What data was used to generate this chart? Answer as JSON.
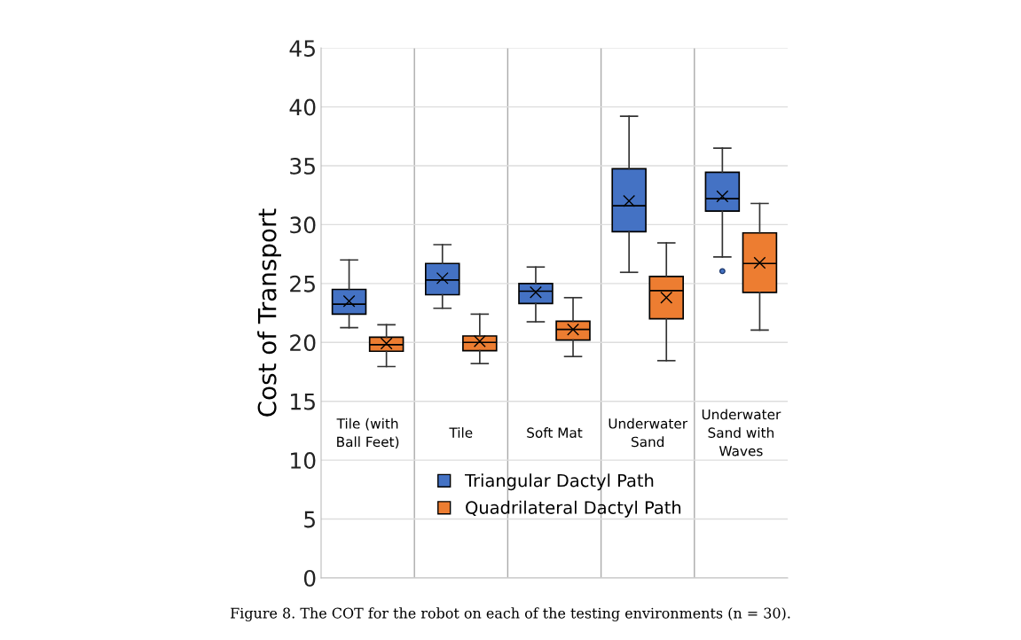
{
  "chart_data": {
    "type": "box",
    "categories": [
      "Tile (with\nBall Feet)",
      "Tile",
      "Soft Mat",
      "Underwater\nSand",
      "Underwater\nSand with\nWaves"
    ],
    "ylabel": "Cost of Transport",
    "ylim": [
      0,
      45
    ],
    "yticks": [
      0,
      5,
      10,
      15,
      20,
      25,
      30,
      35,
      40,
      45
    ],
    "grid": "y",
    "legend": "bottom",
    "marker": "cross",
    "series": [
      {
        "name": "Triangular Dactyl Path",
        "color": "#4472c4",
        "boxes": [
          {
            "low": 21.25,
            "q1": 22.4,
            "median": 23.25,
            "q3": 24.5,
            "high": 27.0,
            "mean": 23.5
          },
          {
            "low": 22.9,
            "q1": 24.05,
            "median": 25.3,
            "q3": 26.7,
            "high": 28.3,
            "mean": 25.45
          },
          {
            "low": 21.75,
            "q1": 23.3,
            "median": 24.35,
            "q3": 25.0,
            "high": 26.4,
            "mean": 24.25
          },
          {
            "low": 25.95,
            "q1": 29.4,
            "median": 31.6,
            "q3": 34.75,
            "high": 39.2,
            "mean": 32.0
          },
          {
            "low": 27.25,
            "q1": 31.15,
            "median": 32.2,
            "q3": 34.45,
            "high": 36.5,
            "mean": 32.4,
            "outliers": [
              26.05
            ]
          }
        ]
      },
      {
        "name": "Quadrilateral Dactyl Path",
        "color": "#ed7d31",
        "boxes": [
          {
            "low": 17.95,
            "q1": 19.25,
            "median": 19.8,
            "q3": 20.45,
            "high": 21.5,
            "mean": 19.9
          },
          {
            "low": 18.2,
            "q1": 19.3,
            "median": 20.0,
            "q3": 20.55,
            "high": 22.4,
            "mean": 20.1
          },
          {
            "low": 18.8,
            "q1": 20.2,
            "median": 21.1,
            "q3": 21.8,
            "high": 23.8,
            "mean": 21.1
          },
          {
            "low": 18.45,
            "q1": 22.0,
            "median": 24.4,
            "q3": 25.6,
            "high": 28.45,
            "mean": 23.8
          },
          {
            "low": 21.05,
            "q1": 24.25,
            "median": 26.7,
            "q3": 29.3,
            "high": 31.8,
            "mean": 26.75
          }
        ]
      }
    ],
    "annotations": [
      "Figure 8. The COT for the robot on each of the testing environments (n = 30)."
    ]
  }
}
